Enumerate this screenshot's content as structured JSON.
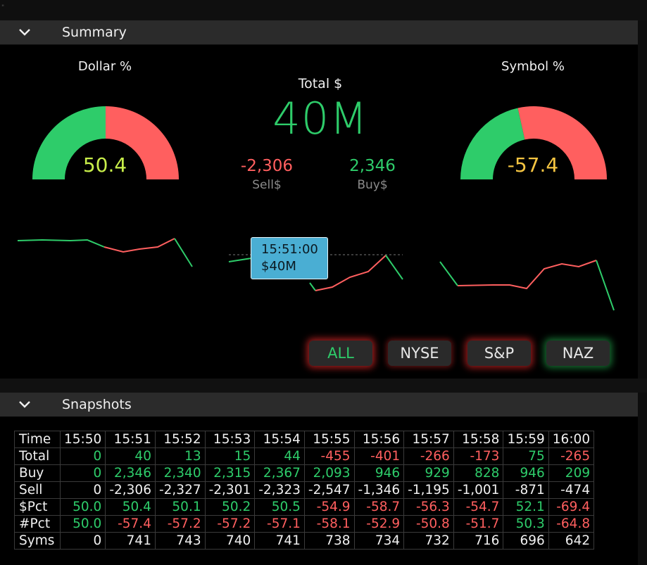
{
  "colors": {
    "green": "#2ecc6a",
    "red": "#ff5f5f",
    "yellow_green": "#c8ee4a",
    "amber": "#f5c542",
    "tooltip_bg": "#4aaed3"
  },
  "summary": {
    "title": "Summary",
    "dollar_gauge": {
      "label": "Dollar %",
      "value": "50.4",
      "green_fraction": 0.5
    },
    "symbol_gauge": {
      "label": "Symbol %",
      "value": "-57.4",
      "green_fraction": 0.43
    },
    "total": {
      "label": "Total $",
      "value": "40M"
    },
    "sell": {
      "value": "-2,306",
      "label": "Sell$"
    },
    "buy": {
      "value": "2,346",
      "label": "Buy$"
    },
    "tooltip": {
      "time": "15:51:00",
      "value": "$40M"
    },
    "buttons": [
      {
        "label": "ALL"
      },
      {
        "label": "NYSE"
      },
      {
        "label": "S&P"
      },
      {
        "label": "NAZ"
      }
    ]
  },
  "snapshots": {
    "title": "Snapshots",
    "header": {
      "label": "Time",
      "cells": [
        "15:50",
        "15:51",
        "15:52",
        "15:53",
        "15:54",
        "15:55",
        "15:56",
        "15:57",
        "15:58",
        "15:59",
        "16:00"
      ]
    },
    "rows": [
      {
        "label": "Total",
        "cells": [
          {
            "v": "0",
            "c": "g"
          },
          {
            "v": "40",
            "c": "g"
          },
          {
            "v": "13",
            "c": "g"
          },
          {
            "v": "15",
            "c": "g"
          },
          {
            "v": "44",
            "c": "g"
          },
          {
            "v": "-455",
            "c": "r"
          },
          {
            "v": "-401",
            "c": "r"
          },
          {
            "v": "-266",
            "c": "r"
          },
          {
            "v": "-173",
            "c": "r"
          },
          {
            "v": "75",
            "c": "g"
          },
          {
            "v": "-265",
            "c": "r"
          }
        ]
      },
      {
        "label": "Buy",
        "cells": [
          {
            "v": "0",
            "c": "g"
          },
          {
            "v": "2,346",
            "c": "g"
          },
          {
            "v": "2,340",
            "c": "g"
          },
          {
            "v": "2,315",
            "c": "g"
          },
          {
            "v": "2,367",
            "c": "g"
          },
          {
            "v": "2,093",
            "c": "g"
          },
          {
            "v": "946",
            "c": "g"
          },
          {
            "v": "929",
            "c": "g"
          },
          {
            "v": "828",
            "c": "g"
          },
          {
            "v": "946",
            "c": "g"
          },
          {
            "v": "209",
            "c": "g"
          }
        ]
      },
      {
        "label": "Sell",
        "cells": [
          {
            "v": "0",
            "c": "w"
          },
          {
            "v": "-2,306",
            "c": "w"
          },
          {
            "v": "-2,327",
            "c": "w"
          },
          {
            "v": "-2,301",
            "c": "w"
          },
          {
            "v": "-2,323",
            "c": "w"
          },
          {
            "v": "-2,547",
            "c": "w"
          },
          {
            "v": "-1,346",
            "c": "w"
          },
          {
            "v": "-1,195",
            "c": "w"
          },
          {
            "v": "-1,001",
            "c": "w"
          },
          {
            "v": "-871",
            "c": "w"
          },
          {
            "v": "-474",
            "c": "w"
          }
        ]
      },
      {
        "label": "$Pct",
        "cells": [
          {
            "v": "50.0",
            "c": "g"
          },
          {
            "v": "50.4",
            "c": "g"
          },
          {
            "v": "50.1",
            "c": "g"
          },
          {
            "v": "50.2",
            "c": "g"
          },
          {
            "v": "50.5",
            "c": "g"
          },
          {
            "v": "-54.9",
            "c": "r"
          },
          {
            "v": "-58.7",
            "c": "r"
          },
          {
            "v": "-56.3",
            "c": "r"
          },
          {
            "v": "-54.7",
            "c": "r"
          },
          {
            "v": "52.1",
            "c": "g"
          },
          {
            "v": "-69.4",
            "c": "r"
          }
        ]
      },
      {
        "label": "#Pct",
        "cells": [
          {
            "v": "50.0",
            "c": "g"
          },
          {
            "v": "-57.4",
            "c": "r"
          },
          {
            "v": "-57.2",
            "c": "r"
          },
          {
            "v": "-57.2",
            "c": "r"
          },
          {
            "v": "-57.1",
            "c": "r"
          },
          {
            "v": "-58.1",
            "c": "r"
          },
          {
            "v": "-52.9",
            "c": "r"
          },
          {
            "v": "-50.8",
            "c": "r"
          },
          {
            "v": "-51.7",
            "c": "r"
          },
          {
            "v": "50.3",
            "c": "g"
          },
          {
            "v": "-64.8",
            "c": "r"
          }
        ]
      },
      {
        "label": "Syms",
        "cells": [
          {
            "v": "0",
            "c": "w"
          },
          {
            "v": "741",
            "c": "w"
          },
          {
            "v": "743",
            "c": "w"
          },
          {
            "v": "740",
            "c": "w"
          },
          {
            "v": "741",
            "c": "w"
          },
          {
            "v": "738",
            "c": "w"
          },
          {
            "v": "734",
            "c": "w"
          },
          {
            "v": "732",
            "c": "w"
          },
          {
            "v": "716",
            "c": "w"
          },
          {
            "v": "696",
            "c": "w"
          },
          {
            "v": "642",
            "c": "w"
          }
        ]
      }
    ]
  }
}
